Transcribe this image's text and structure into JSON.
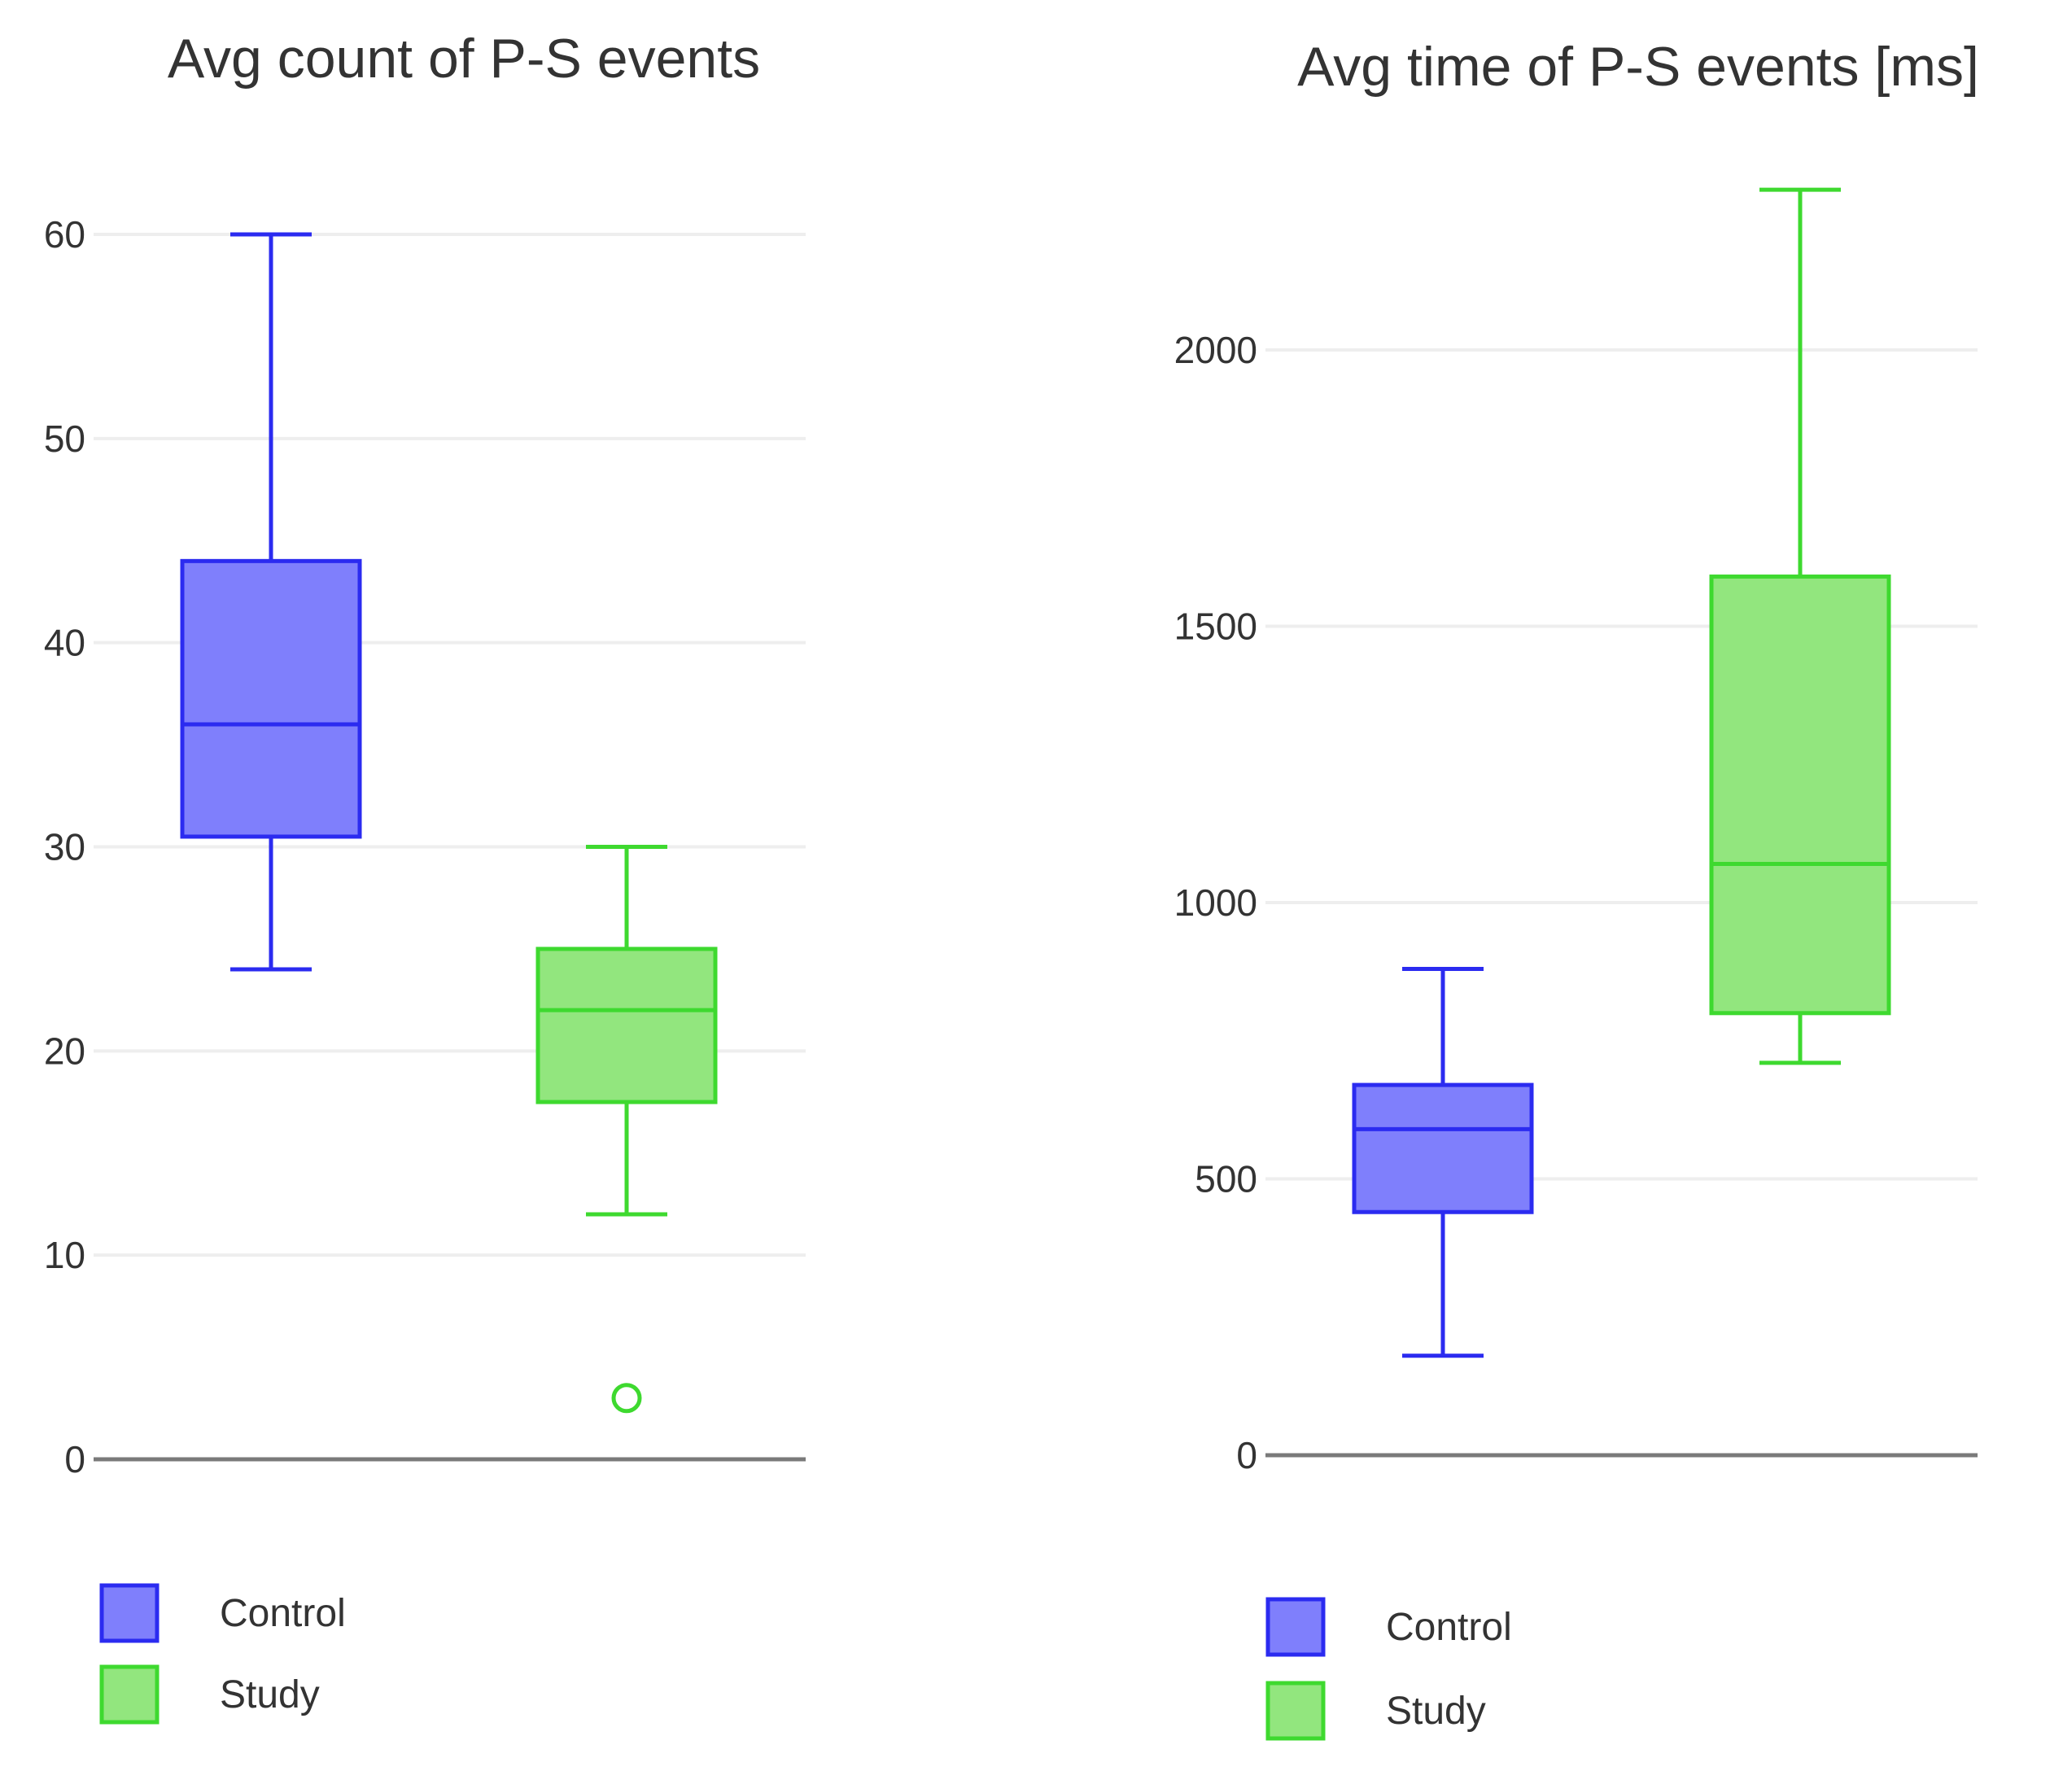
{
  "colors": {
    "control_fill": "#7f7ffc",
    "control_stroke": "#2b2bf0",
    "study_fill": "#92e67e",
    "study_stroke": "#3ed92f",
    "grid": "#eeeeee",
    "axis": "#7a7a7a",
    "text": "#333333"
  },
  "chart_data": [
    {
      "type": "box",
      "title": "Avg count of P-S events",
      "xlabel": "",
      "ylabel": "",
      "ylim": [
        0,
        60
      ],
      "yticks": [
        0,
        10,
        20,
        30,
        40,
        50,
        60
      ],
      "ytick_labels": [
        "0",
        "10",
        "20",
        "30",
        "40",
        "50",
        "60"
      ],
      "grid": true,
      "legend_position": "bottom-left",
      "series": [
        {
          "name": "Control",
          "whisker_low": 24,
          "q1": 30.5,
          "median": 36,
          "q3": 44,
          "whisker_high": 60,
          "outliers": []
        },
        {
          "name": "Study",
          "whisker_low": 12,
          "q1": 17.5,
          "median": 22,
          "q3": 25,
          "whisker_high": 30,
          "outliers": [
            3
          ]
        }
      ]
    },
    {
      "type": "box",
      "title": "Avg time of P-S events [ms]",
      "xlabel": "",
      "ylabel": "",
      "ylim": [
        0,
        2300
      ],
      "yticks": [
        0,
        500,
        1000,
        1500,
        2000
      ],
      "ytick_labels": [
        "0",
        "500",
        "1000",
        "1500",
        "2000"
      ],
      "grid": true,
      "legend_position": "bottom-left",
      "series": [
        {
          "name": "Control",
          "whisker_low": 180,
          "q1": 440,
          "median": 590,
          "q3": 670,
          "whisker_high": 880,
          "outliers": []
        },
        {
          "name": "Study",
          "whisker_low": 710,
          "q1": 800,
          "median": 1070,
          "q3": 1590,
          "whisker_high": 2290,
          "outliers": []
        }
      ]
    }
  ]
}
